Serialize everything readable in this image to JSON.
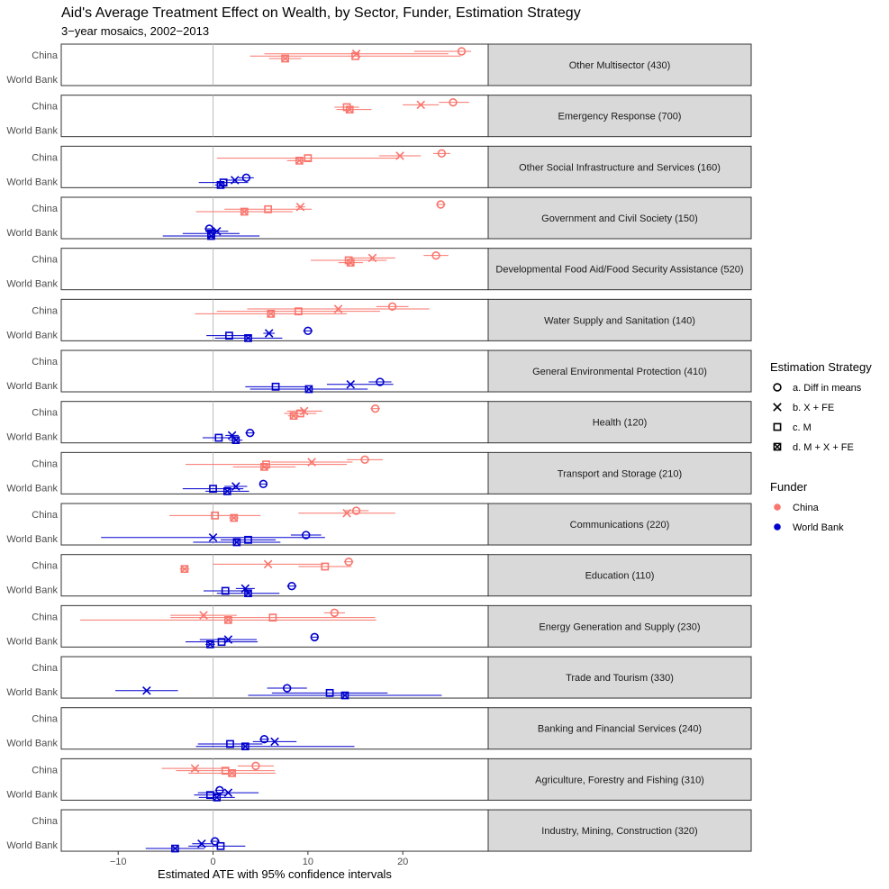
{
  "chart_data": {
    "type": "scatter",
    "title": "Aid's Average Treatment Effect on Wealth, by Sector, Funder, Estimation Strategy",
    "subtitle": "3−year mosaics, 2002−2013",
    "xlabel": "Estimated ATE with 95% confidence intervals",
    "xlim": [
      -16,
      29
    ],
    "x_ticks": [
      {
        "v": -10,
        "label": "−10"
      },
      {
        "v": 0,
        "label": "0"
      },
      {
        "v": 10,
        "label": "10"
      },
      {
        "v": 20,
        "label": "20"
      }
    ],
    "reference_line": 0,
    "funders": [
      {
        "key": "china",
        "label": "China",
        "color": "#f8766d"
      },
      {
        "key": "wb",
        "label": "World Bank",
        "color": "#0000cd"
      }
    ],
    "strategies": [
      {
        "key": "a",
        "label": "a. Diff in means"
      },
      {
        "key": "b",
        "label": "b. X + FE"
      },
      {
        "key": "c",
        "label": "c. M"
      },
      {
        "key": "d",
        "label": "d. M + X + FE"
      }
    ],
    "legend": {
      "strategy_title": "Estimation Strategy",
      "funder_title": "Funder",
      "position": "right"
    },
    "panels": [
      {
        "label": "Other Multisector (430)",
        "china": {
          "a": [
            26.2,
            21.2,
            27.2
          ],
          "b": [
            15.1,
            5.4,
            24.8
          ],
          "c": [
            15.0,
            3.9,
            26.1
          ],
          "d": [
            7.6,
            5.9,
            9.3
          ]
        },
        "wb": null
      },
      {
        "label": "Emergency Response (700)",
        "china": {
          "a": [
            25.3,
            23.8,
            27.0
          ],
          "b": [
            21.9,
            20.0,
            23.8
          ],
          "c": [
            14.1,
            12.8,
            15.4
          ],
          "d": [
            14.4,
            13.0,
            16.7
          ]
        },
        "wb": null
      },
      {
        "label": "Other Social Infrastructure and Services (160)",
        "china": {
          "a": [
            24.1,
            23.2,
            25.0
          ],
          "b": [
            19.7,
            17.5,
            21.9
          ],
          "c": [
            10.0,
            0.4,
            19.6
          ],
          "d": [
            9.1,
            7.8,
            10.4
          ]
        },
        "wb": {
          "a": [
            3.5,
            2.7,
            4.3
          ],
          "b": [
            2.3,
            1.3,
            3.4
          ],
          "c": [
            1.1,
            -1.5,
            3.7
          ],
          "d": [
            0.8,
            0.2,
            1.4
          ]
        }
      },
      {
        "label": "Government and Civil Society (150)",
        "china": {
          "a": [
            24.0,
            23.5,
            24.5
          ],
          "b": [
            9.2,
            8.7,
            9.7
          ],
          "c": [
            5.8,
            1.2,
            10.4
          ],
          "d": [
            3.3,
            -1.8,
            8.4
          ]
        },
        "wb": {
          "a": [
            -0.4,
            -0.9,
            0.1
          ],
          "b": [
            0.4,
            -0.8,
            1.6
          ],
          "c": [
            -0.2,
            -3.2,
            2.8
          ],
          "d": [
            -0.2,
            -5.3,
            4.9
          ]
        }
      },
      {
        "label": "Developmental Food Aid/Food Security Assistance (520)",
        "china": {
          "a": [
            23.5,
            22.2,
            24.8
          ],
          "b": [
            16.8,
            14.4,
            19.2
          ],
          "c": [
            14.3,
            10.3,
            18.3
          ],
          "d": [
            14.5,
            13.2,
            15.8
          ]
        },
        "wb": null
      },
      {
        "label": "Water Supply and Sanitation (140)",
        "china": {
          "a": [
            18.9,
            17.2,
            20.6
          ],
          "b": [
            13.2,
            3.6,
            22.8
          ],
          "c": [
            9.0,
            0.4,
            17.6
          ],
          "d": [
            6.1,
            -1.9,
            14.1
          ]
        },
        "wb": {
          "a": [
            10.0,
            9.5,
            10.5
          ],
          "b": [
            5.9,
            5.3,
            6.5
          ],
          "c": [
            1.7,
            -0.7,
            4.1
          ],
          "d": [
            3.7,
            0.2,
            7.3
          ]
        }
      },
      {
        "label": "General Environmental Protection (410)",
        "china": null,
        "wb": {
          "a": [
            17.6,
            16.4,
            18.8
          ],
          "b": [
            14.5,
            12.0,
            19.0
          ],
          "c": [
            6.6,
            3.4,
            9.8
          ],
          "d": [
            10.1,
            3.9,
            16.3
          ]
        }
      },
      {
        "label": "Health (120)",
        "china": {
          "a": [
            17.1,
            16.6,
            17.6
          ],
          "b": [
            9.6,
            7.8,
            11.5
          ],
          "c": [
            9.2,
            7.5,
            10.9
          ],
          "d": [
            8.5,
            7.9,
            9.1
          ]
        },
        "wb": {
          "a": [
            3.9,
            3.4,
            4.4
          ],
          "b": [
            2.0,
            1.3,
            2.7
          ],
          "c": [
            0.6,
            -1.1,
            2.3
          ],
          "d": [
            2.4,
            1.7,
            3.1
          ]
        }
      },
      {
        "label": "Transport and Storage (210)",
        "china": {
          "a": [
            16.0,
            14.1,
            17.9
          ],
          "b": [
            10.4,
            6.1,
            14.7
          ],
          "c": [
            5.6,
            -2.9,
            14.1
          ],
          "d": [
            5.4,
            2.1,
            8.7
          ]
        },
        "wb": {
          "a": [
            5.3,
            4.9,
            5.7
          ],
          "b": [
            2.4,
            1.2,
            3.6
          ],
          "c": [
            0.0,
            -3.2,
            3.2
          ],
          "d": [
            1.5,
            -0.8,
            3.8
          ]
        }
      },
      {
        "label": "Communications (220)",
        "china": {
          "a": [
            15.1,
            13.8,
            16.4
          ],
          "b": [
            14.1,
            9.0,
            19.2
          ],
          "c": [
            0.2,
            -4.6,
            5.0
          ],
          "d": [
            2.2,
            1.7,
            2.7
          ]
        },
        "wb": {
          "a": [
            9.8,
            8.2,
            11.4
          ],
          "b": [
            0.0,
            -11.8,
            11.8
          ],
          "c": [
            3.7,
            0.8,
            6.6
          ],
          "d": [
            2.5,
            -2.1,
            7.1
          ]
        }
      },
      {
        "label": "Education (110)",
        "china": {
          "a": [
            14.3,
            13.8,
            14.8
          ],
          "b": [
            5.8,
            0.0,
            11.6
          ],
          "c": [
            11.8,
            9.0,
            14.6
          ],
          "d": [
            -3.0,
            -3.5,
            -2.5
          ]
        },
        "wb": {
          "a": [
            8.3,
            7.8,
            8.8
          ],
          "b": [
            3.4,
            2.4,
            4.4
          ],
          "c": [
            1.3,
            -1.0,
            3.6
          ],
          "d": [
            3.7,
            0.4,
            7.0
          ]
        }
      },
      {
        "label": "Energy Generation and Supply (230)",
        "china": {
          "a": [
            12.8,
            11.7,
            13.9
          ],
          "b": [
            -1.0,
            -4.5,
            2.5
          ],
          "c": [
            6.3,
            -4.5,
            17.1
          ],
          "d": [
            1.6,
            -14.0,
            17.2
          ]
        },
        "wb": {
          "a": [
            10.7,
            10.3,
            11.1
          ],
          "b": [
            1.6,
            -1.4,
            4.6
          ],
          "c": [
            0.9,
            -2.9,
            4.7
          ],
          "d": [
            -0.3,
            -0.8,
            0.2
          ]
        }
      },
      {
        "label": "Trade and Tourism (330)",
        "china": null,
        "wb": {
          "a": [
            7.8,
            5.7,
            9.9
          ],
          "b": [
            -7.0,
            -10.3,
            -3.7
          ],
          "c": [
            12.3,
            6.2,
            18.4
          ],
          "d": [
            13.9,
            3.7,
            24.1
          ]
        }
      },
      {
        "label": "Banking and Financial Services (240)",
        "china": null,
        "wb": {
          "a": [
            5.4,
            4.9,
            5.9
          ],
          "b": [
            6.5,
            4.2,
            8.8
          ],
          "c": [
            1.8,
            -1.6,
            5.2
          ],
          "d": [
            3.4,
            -1.8,
            14.9
          ]
        }
      },
      {
        "label": "Agriculture, Forestry and Fishing (310)",
        "china": {
          "a": [
            4.5,
            2.6,
            6.4
          ],
          "b": [
            -1.9,
            -5.4,
            1.6
          ],
          "c": [
            1.3,
            -3.9,
            6.5
          ],
          "d": [
            2.0,
            -2.6,
            6.6
          ]
        },
        "wb": {
          "a": [
            0.7,
            0.2,
            1.2
          ],
          "b": [
            1.6,
            -1.6,
            4.8
          ],
          "c": [
            -0.3,
            -2.0,
            1.4
          ],
          "d": [
            0.4,
            -1.5,
            2.3
          ]
        }
      },
      {
        "label": "Industry, Mining, Construction (320)",
        "china": null,
        "wb": {
          "a": [
            0.2,
            -0.3,
            0.7
          ],
          "b": [
            -1.2,
            -2.2,
            -0.2
          ],
          "c": [
            0.8,
            -2.6,
            3.4
          ],
          "d": [
            -4.0,
            -7.1,
            -0.9
          ]
        }
      }
    ]
  }
}
